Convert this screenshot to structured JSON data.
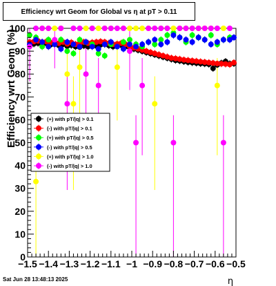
{
  "chart_data": {
    "type": "scatter",
    "title": "Efficiency wrt Geom for Global vs  η at pT > 0.11",
    "xlabel": "η",
    "ylabel": "Efficiency wrt Geom (%)",
    "xlim": [
      -1.5,
      -0.5
    ],
    "ylim": [
      0,
      100
    ],
    "x_ticks": [
      "-1.5",
      "-1.4",
      "-1.3",
      "-1.2",
      "-1.1",
      "-1",
      "-0.9",
      "-0.8",
      "-0.7",
      "-0.6",
      "-0.5"
    ],
    "y_ticks": [
      "0",
      "10",
      "20",
      "30",
      "40",
      "50",
      "60",
      "70",
      "80",
      "90",
      "100"
    ],
    "grid": false,
    "legend_placement": "left-middle",
    "series": [
      {
        "name": "(+) with pT/|q| > 0.1",
        "marker": "circle",
        "color": "#000000",
        "x": [
          -1.49,
          -1.47,
          -1.45,
          -1.43,
          -1.41,
          -1.39,
          -1.37,
          -1.35,
          -1.33,
          -1.31,
          -1.29,
          -1.27,
          -1.25,
          -1.23,
          -1.21,
          -1.19,
          -1.17,
          -1.15,
          -1.13,
          -1.11,
          -1.09,
          -1.07,
          -1.05,
          -1.03,
          -1.01,
          -0.99,
          -0.97,
          -0.95,
          -0.93,
          -0.91,
          -0.89,
          -0.87,
          -0.85,
          -0.83,
          -0.81,
          -0.79,
          -0.77,
          -0.75,
          -0.73,
          -0.71,
          -0.69,
          -0.67,
          -0.65,
          -0.63,
          -0.61,
          -0.59,
          -0.57,
          -0.55,
          -0.53,
          -0.51
        ],
        "y": [
          93,
          93.2,
          93.5,
          93,
          93.4,
          92.8,
          93,
          92.5,
          93,
          92.2,
          92.6,
          92,
          91.8,
          92.4,
          92,
          92.6,
          92.3,
          92.8,
          93,
          92.5,
          92,
          92.4,
          92.6,
          92,
          91.5,
          91,
          90.5,
          90,
          89.5,
          89,
          88.5,
          88,
          87.5,
          87,
          86.5,
          86,
          85.8,
          85.5,
          85.2,
          85,
          84.8,
          84.6,
          84.5,
          84.3,
          82.5,
          84,
          84.8,
          85.5,
          84.5,
          84.6
        ]
      },
      {
        "name": "(-) with pT/|q| > 0.1",
        "marker": "circle",
        "color": "#ff0000",
        "x": [
          -1.49,
          -1.47,
          -1.45,
          -1.43,
          -1.41,
          -1.39,
          -1.37,
          -1.35,
          -1.33,
          -1.31,
          -1.29,
          -1.27,
          -1.25,
          -1.23,
          -1.21,
          -1.19,
          -1.17,
          -1.15,
          -1.13,
          -1.11,
          -1.09,
          -1.07,
          -1.05,
          -1.03,
          -1.01,
          -0.99,
          -0.97,
          -0.95,
          -0.93,
          -0.91,
          -0.89,
          -0.87,
          -0.85,
          -0.83,
          -0.81,
          -0.79,
          -0.77,
          -0.75,
          -0.73,
          -0.71,
          -0.69,
          -0.67,
          -0.65,
          -0.63,
          -0.61,
          -0.59,
          -0.57,
          -0.55,
          -0.53,
          -0.51
        ],
        "y": [
          94,
          94.2,
          94.5,
          94,
          94.2,
          93.8,
          94,
          93.5,
          94,
          93.2,
          93.8,
          93,
          93.5,
          94,
          93.5,
          93.8,
          94,
          94.2,
          94,
          93.5,
          93,
          93.2,
          93.5,
          93,
          92,
          91.5,
          91,
          90.5,
          90,
          89.5,
          89,
          88.5,
          88,
          87.5,
          87,
          86.8,
          86.5,
          86.2,
          86,
          85.8,
          85.6,
          85.4,
          85.2,
          85,
          84.8,
          84.6,
          84.5,
          84.4,
          84.2,
          85
        ]
      },
      {
        "name": "(+) with pT/|q| > 0.5",
        "marker": "circle",
        "color": "#00ff00",
        "x": [
          -1.49,
          -1.46,
          -1.43,
          -1.4,
          -1.37,
          -1.34,
          -1.31,
          -1.28,
          -1.25,
          -1.22,
          -1.19,
          -1.16,
          -1.13,
          -1.1,
          -1.07,
          -1.04,
          -1.01,
          -0.98,
          -0.95,
          -0.92,
          -0.89,
          -0.86,
          -0.83,
          -0.8,
          -0.77,
          -0.74,
          -0.71,
          -0.68,
          -0.65,
          -0.62,
          -0.59,
          -0.56,
          -0.53
        ],
        "y": [
          97,
          96,
          92,
          95,
          93,
          95,
          90,
          89,
          95,
          94,
          93,
          89,
          88,
          93,
          92,
          94,
          95,
          93,
          92,
          94,
          93,
          95,
          97,
          98,
          96,
          94,
          97,
          96,
          95,
          97,
          93,
          95,
          96
        ]
      },
      {
        "name": "(-) with pT/|q| > 0.5",
        "marker": "circle",
        "color": "#0000ff",
        "x": [
          -1.49,
          -1.46,
          -1.43,
          -1.4,
          -1.37,
          -1.34,
          -1.31,
          -1.28,
          -1.25,
          -1.22,
          -1.19,
          -1.16,
          -1.13,
          -1.1,
          -1.07,
          -1.04,
          -1.01,
          -0.98,
          -0.95,
          -0.92,
          -0.89,
          -0.86,
          -0.83,
          -0.8,
          -0.77,
          -0.74,
          -0.71,
          -0.68,
          -0.65,
          -0.62,
          -0.59,
          -0.56,
          -0.53,
          -0.51
        ],
        "y": [
          93,
          95,
          94,
          92,
          93,
          91,
          94,
          93,
          92,
          94,
          92,
          91,
          93,
          94,
          92,
          91,
          93,
          92,
          93,
          94,
          95,
          93,
          94,
          97,
          96,
          95,
          94,
          96,
          95,
          93,
          94,
          95,
          95,
          96
        ]
      },
      {
        "name": "(+) with pT/|q| > 1.0",
        "marker": "circle",
        "color": "#ffff00",
        "x": [
          -1.46,
          -1.43,
          -1.4,
          -1.37,
          -1.34,
          -1.31,
          -1.28,
          -1.25,
          -1.22,
          -1.19,
          -1.16,
          -1.13,
          -1.1,
          -1.07,
          -1.04,
          -1.01,
          -0.98,
          -0.95,
          -0.92,
          -0.89,
          -0.86,
          -0.83,
          -0.8,
          -0.77,
          -0.74,
          -0.71,
          -0.68,
          -0.65,
          -0.62,
          -0.59,
          -0.56
        ],
        "y": [
          33,
          100,
          100,
          100,
          100,
          80,
          67,
          83,
          100,
          100,
          100,
          100,
          100,
          83,
          100,
          100,
          100,
          100,
          100,
          67,
          100,
          100,
          100,
          100,
          100,
          100,
          100,
          100,
          100,
          75,
          100
        ]
      },
      {
        "name": "(-) with pT/|q| > 1.0",
        "marker": "circle",
        "color": "#ff00ff",
        "x": [
          -1.49,
          -1.46,
          -1.43,
          -1.4,
          -1.37,
          -1.34,
          -1.31,
          -1.28,
          -1.25,
          -1.22,
          -1.19,
          -1.16,
          -1.13,
          -1.1,
          -1.07,
          -1.04,
          -1.01,
          -0.98,
          -0.95,
          -0.92,
          -0.89,
          -0.86,
          -0.83,
          -0.8,
          -0.77,
          -0.74,
          -0.71,
          -0.68,
          -0.65,
          -0.62,
          -0.59,
          -0.56,
          -0.53
        ],
        "y": [
          92,
          100,
          100,
          100,
          95,
          100,
          67,
          100,
          100,
          80,
          100,
          75,
          100,
          100,
          100,
          100,
          90,
          50,
          75,
          100,
          100,
          100,
          100,
          50,
          100,
          100,
          100,
          100,
          100,
          100,
          100,
          50,
          100
        ]
      }
    ],
    "error_bars_shown": true
  },
  "timestamp": "Sat Jun 28 13:48:13 2025"
}
